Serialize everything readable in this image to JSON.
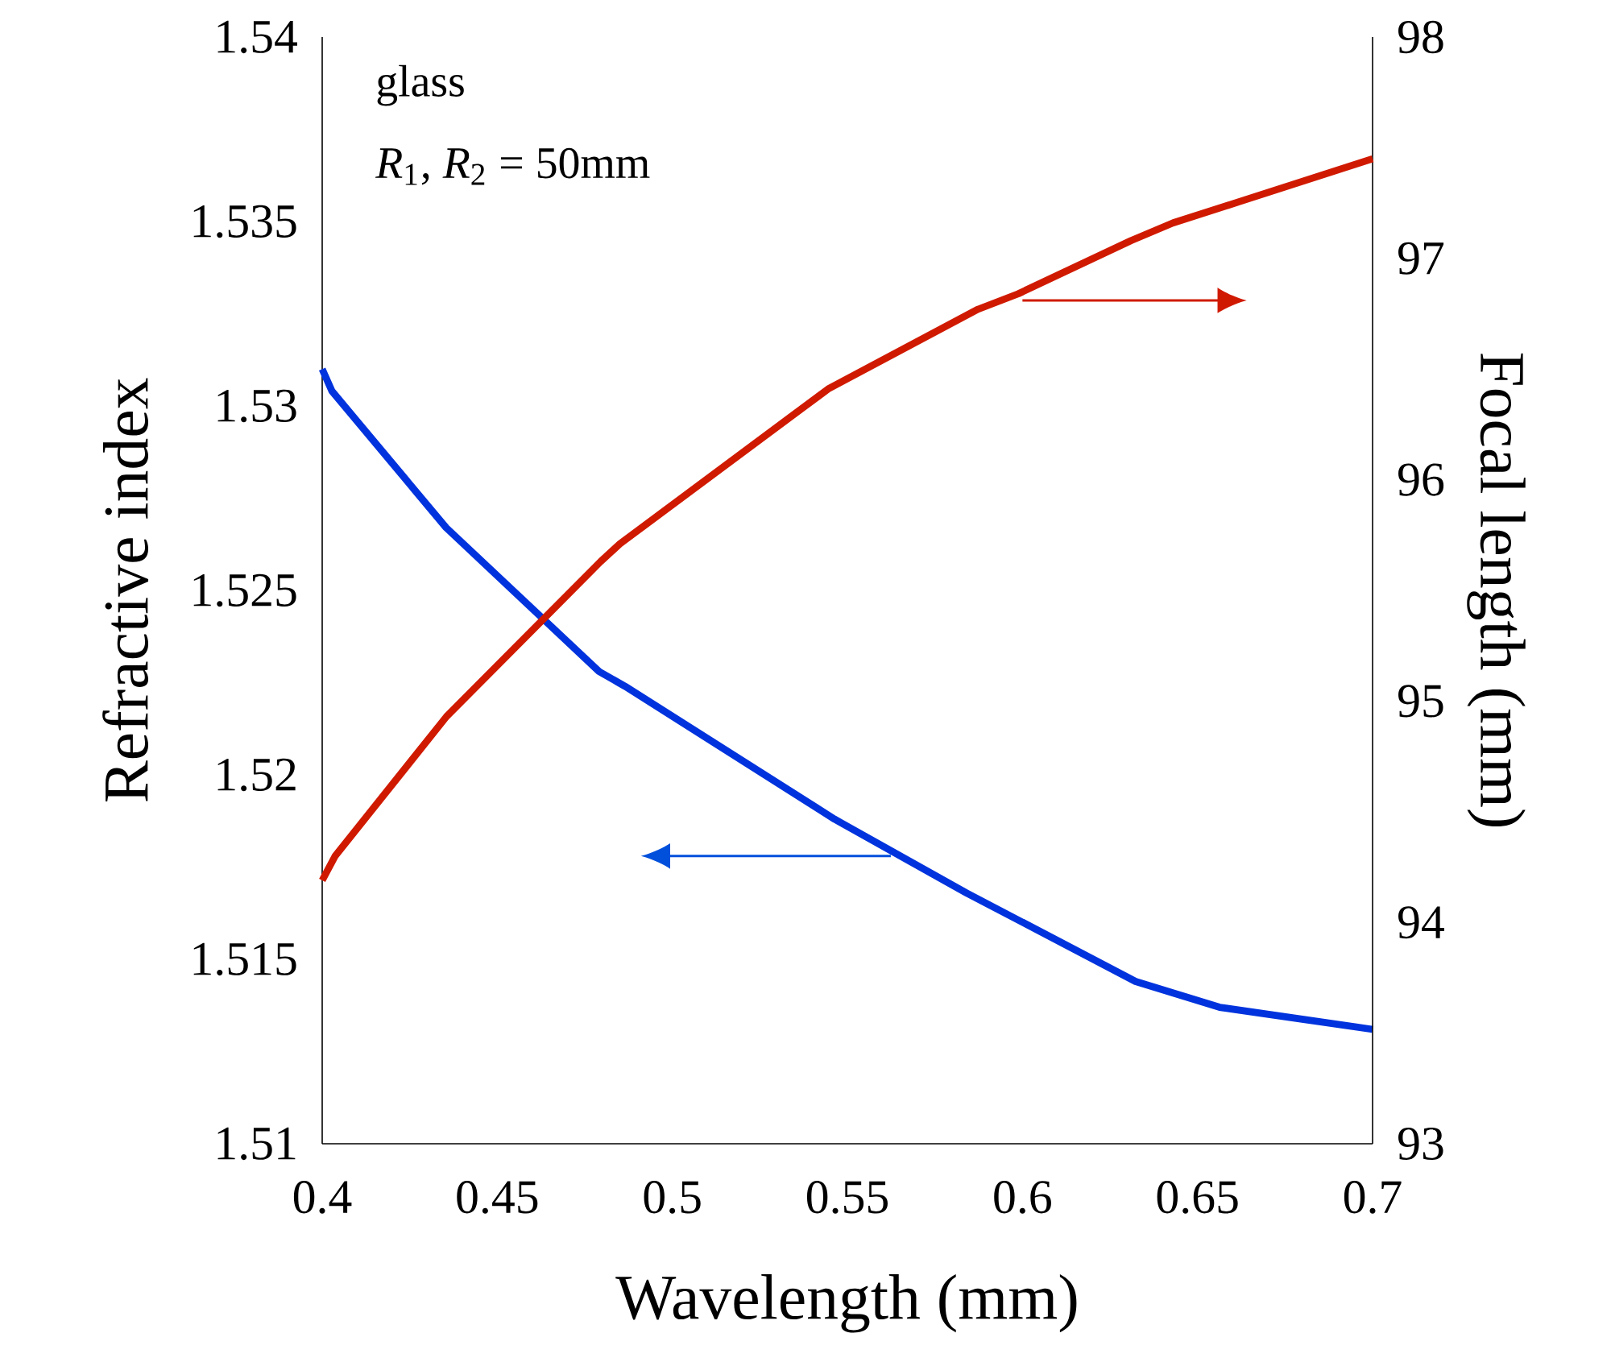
{
  "chart_data": {
    "type": "line",
    "xlabel": "Wavelength (mm)",
    "ylabel": "Refractive index",
    "y2label": "Focal length (mm)",
    "annotations": [
      "glass",
      "*R*$_{1}$, *R*$_{2}$ = 50mm"
    ],
    "xlim": [
      0.4,
      0.7
    ],
    "xticks": [
      0.4,
      0.45,
      0.5,
      0.55,
      0.6,
      0.65,
      0.7
    ],
    "ylim": [
      1.51,
      1.54
    ],
    "yticks": [
      1.51,
      1.515,
      1.52,
      1.525,
      1.53,
      1.535,
      1.54
    ],
    "y2lim": [
      93,
      98
    ],
    "y2ticks": [
      93,
      94,
      95,
      96,
      97,
      98
    ],
    "marker": "none",
    "line_style": "solid",
    "series": [
      {
        "color": "#0033dd",
        "x": [
          0.4,
          0.4028,
          0.4354,
          0.4791,
          0.4865,
          0.538,
          0.5463,
          0.584,
          0.6323,
          0.6563,
          0.7
        ],
        "values": [
          1.531,
          1.5304,
          1.5267,
          1.5228,
          1.5224,
          1.5193,
          1.5188,
          1.5168,
          1.5144,
          1.5137,
          1.5131
        ]
      },
      {
        "color": "#d01a00",
        "axis": "y2",
        "x": [
          0.4,
          0.4037,
          0.4355,
          0.4795,
          0.485,
          0.5445,
          0.5873,
          0.5988,
          0.631,
          0.643,
          0.7
        ],
        "values": [
          94.19,
          94.3,
          94.93,
          95.63,
          95.71,
          96.41,
          96.77,
          96.84,
          97.08,
          97.16,
          97.45
        ]
      }
    ]
  }
}
